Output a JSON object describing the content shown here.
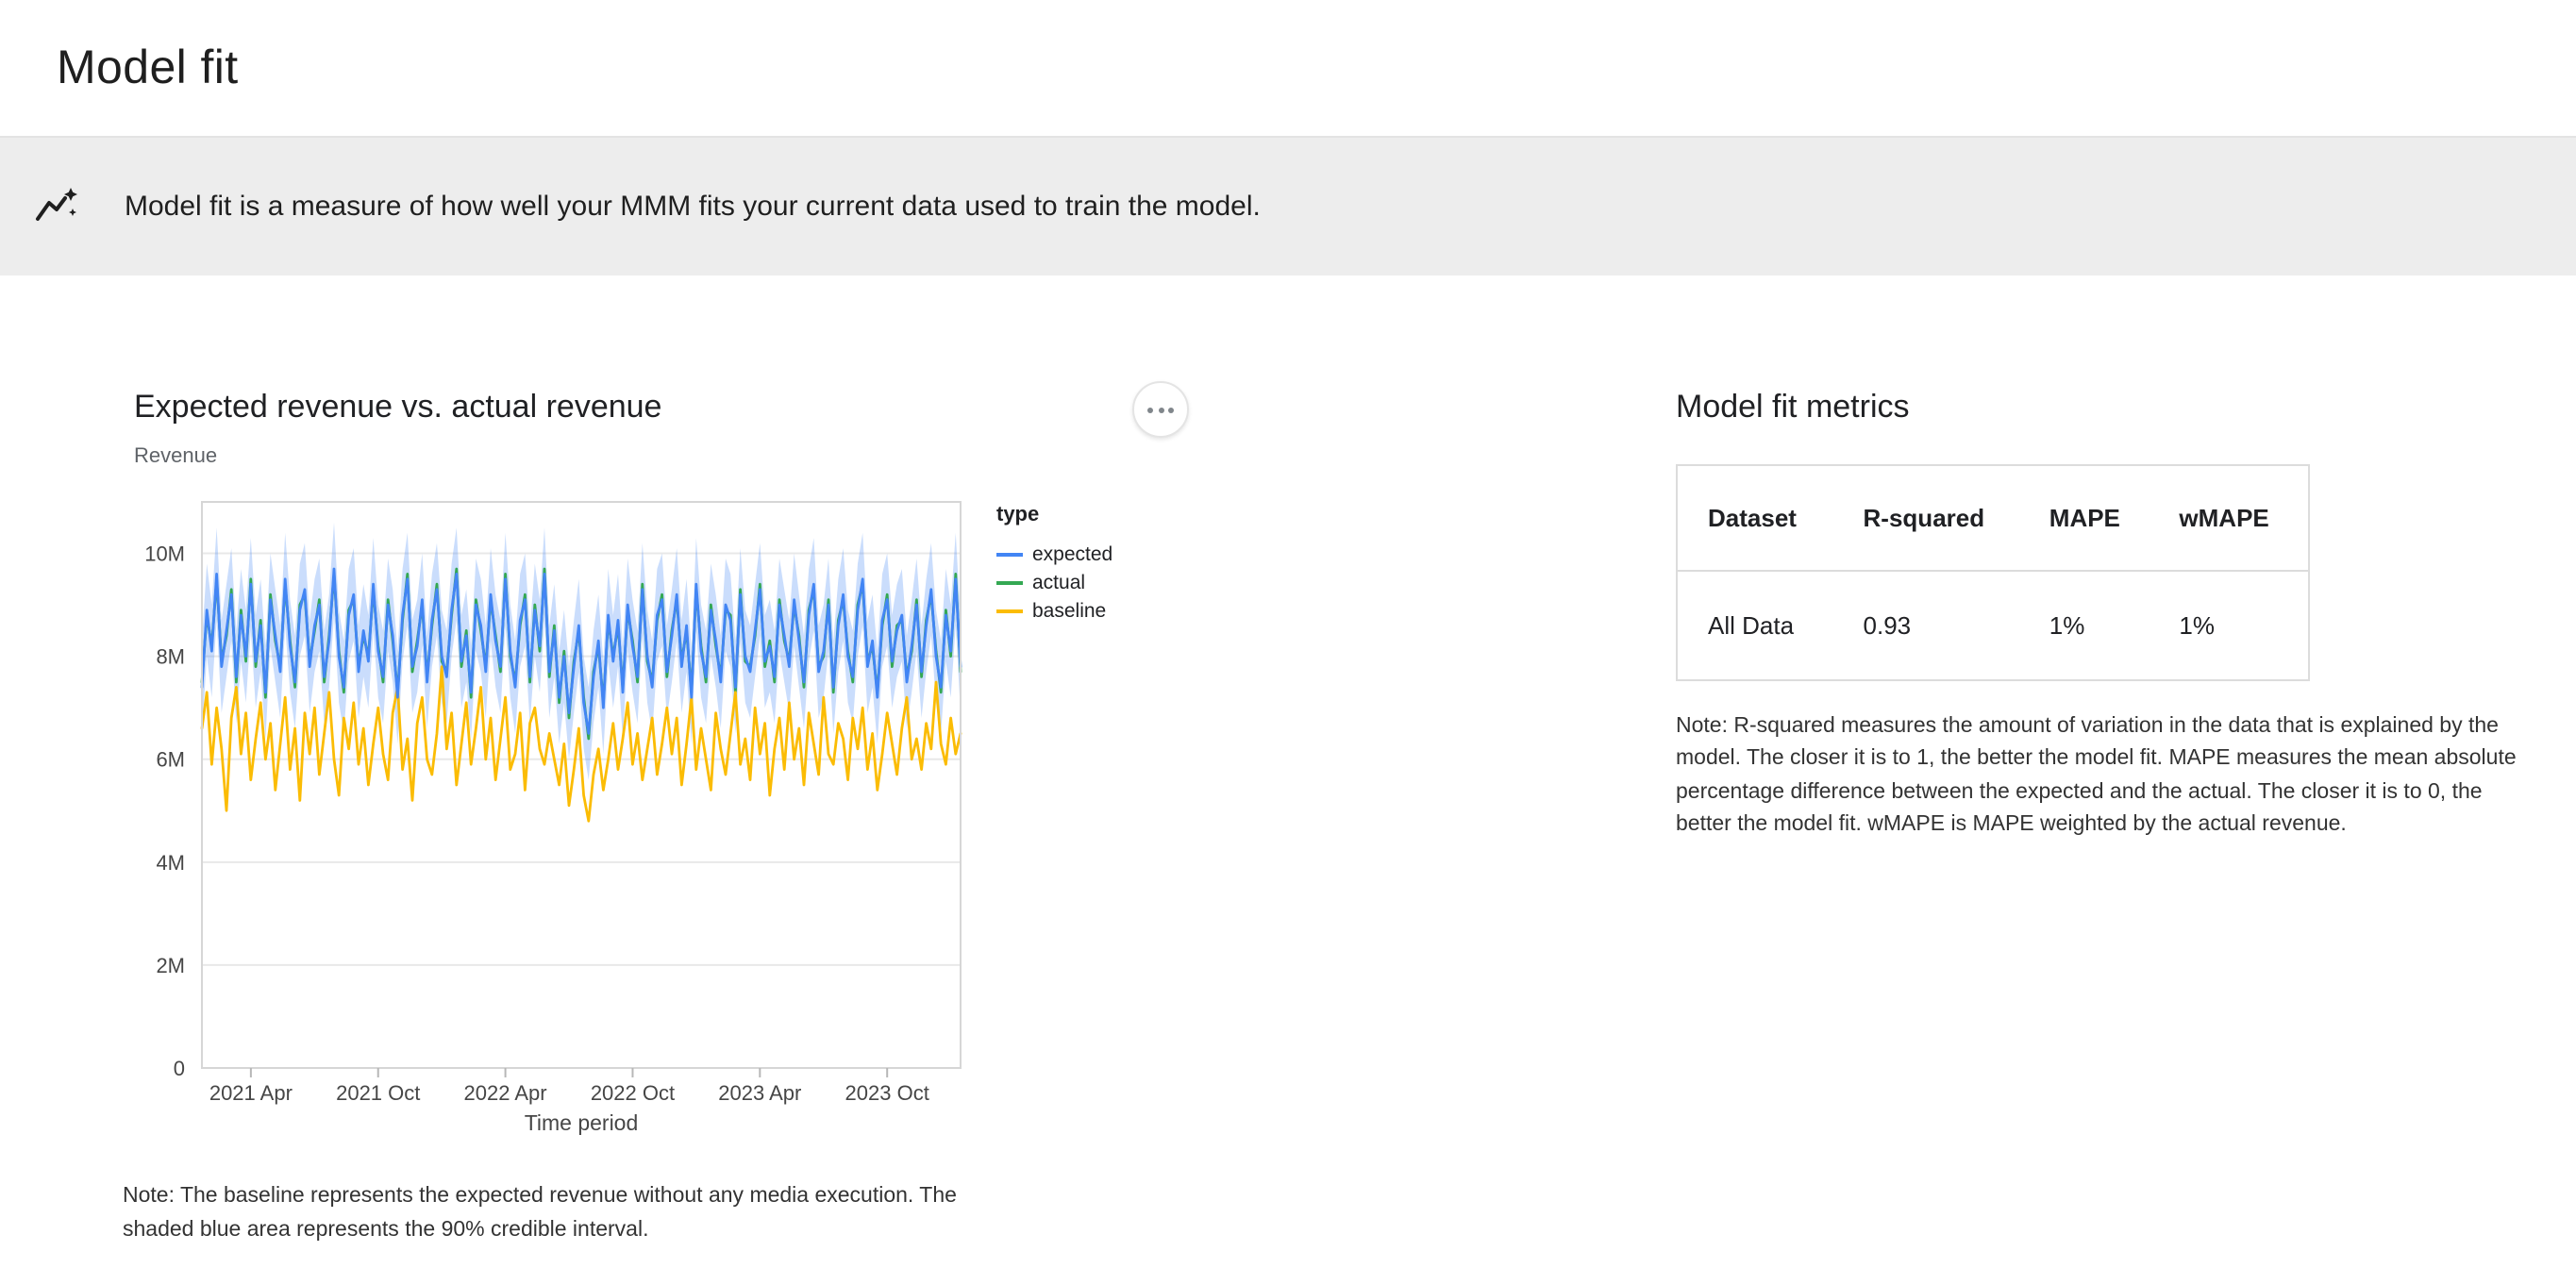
{
  "page": {
    "title": "Model fit",
    "banner_text": "Model fit is a measure of how well your MMM fits your current data used to train the model."
  },
  "chart_section": {
    "title": "Expected revenue vs. actual revenue",
    "y_axis_title": "Revenue",
    "x_axis_title": "Time period",
    "legend_title": "type",
    "legend": [
      {
        "label": "expected",
        "color": "#4285f4"
      },
      {
        "label": "actual",
        "color": "#34a853"
      },
      {
        "label": "baseline",
        "color": "#fbbc04"
      }
    ],
    "note": "Note: The baseline represents the expected revenue without any media execution. The shaded blue area represents the 90% credible interval."
  },
  "metrics_section": {
    "title": "Model fit metrics",
    "table": {
      "headers": [
        "Dataset",
        "R-squared",
        "MAPE",
        "wMAPE"
      ],
      "rows": [
        [
          "All Data",
          "0.93",
          "1%",
          "1%"
        ]
      ]
    },
    "note": "Note: R-squared measures the amount of variation in the data that is explained by the model. The closer it is to 1, the better the model fit. MAPE measures the mean absolute percentage difference between the expected and the actual. The closer it is to 0, the better the model fit. wMAPE is MAPE weighted by the actual revenue."
  },
  "chart_data": {
    "type": "line",
    "title": "Expected revenue vs. actual revenue",
    "xlabel": "Time period",
    "ylabel": "Revenue",
    "frequency": "weekly",
    "x_range": [
      "2021 Jan",
      "2024 Jan"
    ],
    "ylim_millions": [
      0,
      11
    ],
    "y_ticks_millions": [
      0,
      2,
      4,
      6,
      8,
      10
    ],
    "y_tick_labels": [
      "0",
      "2M",
      "4M",
      "6M",
      "8M",
      "10M"
    ],
    "x_tick_positions": [
      10,
      36,
      62,
      88,
      114,
      140
    ],
    "x_tick_labels": [
      "2021 Apr",
      "2021 Oct",
      "2022 Apr",
      "2022 Oct",
      "2023 Apr",
      "2023 Oct"
    ],
    "credible_interval_halfwidth_millions": 0.9,
    "band_color": "#4285f4",
    "band_opacity": 0.28,
    "legend_position": "right",
    "grid": true,
    "series": [
      {
        "name": "expected",
        "color": "#4285f4",
        "values_millions": [
          7.4,
          8.9,
          8.1,
          9.6,
          7.8,
          8.5,
          9.2,
          7.6,
          8.8,
          8.0,
          9.4,
          7.9,
          8.6,
          7.3,
          9.1,
          8.4,
          7.7,
          9.5,
          8.2,
          7.5,
          8.9,
          9.3,
          7.8,
          8.6,
          9.0,
          7.6,
          8.3,
          9.7,
          8.0,
          7.4,
          8.8,
          9.2,
          7.7,
          8.5,
          7.9,
          9.4,
          8.1,
          7.6,
          9.0,
          8.4,
          7.2,
          8.8,
          9.5,
          7.8,
          8.2,
          9.1,
          7.5,
          8.7,
          9.3,
          8.0,
          7.6,
          8.9,
          9.6,
          7.9,
          8.4,
          7.3,
          9.0,
          8.6,
          7.7,
          9.2,
          8.3,
          7.8,
          9.5,
          8.1,
          7.4,
          8.7,
          9.1,
          7.6,
          8.9,
          8.2,
          9.6,
          7.7,
          8.5,
          7.2,
          8.0,
          6.9,
          7.8,
          8.6,
          7.1,
          6.5,
          7.6,
          8.3,
          7.0,
          8.8,
          7.9,
          8.7,
          7.3,
          9.0,
          8.2,
          7.6,
          9.3,
          8.0,
          7.4,
          8.8,
          9.1,
          7.7,
          8.4,
          9.2,
          7.8,
          8.6,
          7.2,
          9.4,
          8.1,
          7.6,
          8.9,
          8.3,
          7.5,
          9.0,
          8.7,
          7.4,
          9.2,
          8.0,
          7.7,
          8.5,
          9.3,
          7.9,
          8.2,
          7.6,
          9.0,
          8.4,
          7.8,
          9.1,
          8.3,
          7.5,
          8.8,
          9.4,
          7.7,
          8.1,
          9.0,
          7.4,
          8.6,
          9.2,
          8.0,
          7.6,
          8.9,
          9.5,
          7.8,
          8.3,
          7.2,
          8.7,
          9.1,
          7.9,
          8.5,
          8.8,
          7.5,
          8.2,
          9.0,
          7.7,
          8.6,
          9.3,
          8.0,
          7.4,
          8.8,
          8.1,
          9.5,
          7.8
        ]
      },
      {
        "name": "actual",
        "color": "#34a853",
        "values_millions": [
          7.5,
          8.8,
          8.2,
          9.5,
          7.9,
          8.4,
          9.3,
          7.5,
          8.9,
          7.9,
          9.5,
          7.8,
          8.7,
          7.2,
          9.2,
          8.3,
          7.8,
          9.4,
          8.3,
          7.4,
          9.0,
          9.2,
          7.9,
          8.5,
          9.1,
          7.5,
          8.4,
          9.6,
          8.1,
          7.3,
          8.9,
          9.1,
          7.8,
          8.4,
          8.0,
          9.3,
          8.2,
          7.5,
          9.1,
          8.3,
          7.3,
          8.7,
          9.6,
          7.7,
          8.3,
          9.0,
          7.6,
          8.6,
          9.4,
          7.9,
          7.7,
          8.8,
          9.7,
          7.8,
          8.5,
          7.2,
          9.1,
          8.5,
          7.8,
          9.1,
          8.4,
          7.7,
          9.6,
          8.0,
          7.5,
          8.6,
          9.2,
          7.5,
          9.0,
          8.1,
          9.7,
          7.6,
          8.6,
          7.1,
          8.1,
          6.8,
          7.9,
          8.5,
          7.2,
          6.4,
          7.7,
          8.2,
          7.1,
          8.7,
          8.0,
          8.6,
          7.4,
          8.9,
          8.3,
          7.5,
          9.4,
          7.9,
          7.5,
          8.7,
          9.2,
          7.6,
          8.5,
          9.1,
          7.9,
          8.5,
          7.3,
          9.3,
          8.2,
          7.5,
          9.0,
          8.2,
          7.6,
          8.9,
          8.8,
          7.3,
          9.3,
          7.9,
          7.8,
          8.4,
          9.4,
          7.8,
          8.3,
          7.5,
          9.1,
          8.3,
          7.9,
          9.0,
          8.4,
          7.4,
          8.9,
          9.3,
          7.8,
          8.0,
          9.1,
          7.3,
          8.7,
          9.1,
          8.1,
          7.5,
          9.0,
          9.4,
          7.9,
          8.2,
          7.3,
          8.6,
          9.2,
          7.8,
          8.6,
          8.7,
          7.6,
          8.1,
          9.1,
          7.6,
          8.7,
          9.2,
          8.1,
          7.3,
          8.9,
          8.0,
          9.6,
          7.7
        ]
      },
      {
        "name": "baseline",
        "color": "#fbbc04",
        "values_millions": [
          6.6,
          7.3,
          5.9,
          7.0,
          6.2,
          5.0,
          6.8,
          7.4,
          6.1,
          6.9,
          5.6,
          6.4,
          7.1,
          6.0,
          6.7,
          5.4,
          6.3,
          7.2,
          5.8,
          6.6,
          5.2,
          6.9,
          6.1,
          7.0,
          5.7,
          6.5,
          7.3,
          6.0,
          5.3,
          6.8,
          6.2,
          7.1,
          5.9,
          6.6,
          5.5,
          6.3,
          7.0,
          6.1,
          5.6,
          6.9,
          7.4,
          5.8,
          6.4,
          5.2,
          6.7,
          7.2,
          6.0,
          5.7,
          6.5,
          7.8,
          6.2,
          6.9,
          5.5,
          6.3,
          7.1,
          5.9,
          6.6,
          7.4,
          6.0,
          6.8,
          5.6,
          6.4,
          7.2,
          5.8,
          6.1,
          6.9,
          5.4,
          6.7,
          7.0,
          6.2,
          5.9,
          6.5,
          6.0,
          5.5,
          6.3,
          5.1,
          5.8,
          6.6,
          5.3,
          4.8,
          5.7,
          6.2,
          5.4,
          6.0,
          6.7,
          5.8,
          6.4,
          7.1,
          5.9,
          6.5,
          5.6,
          6.2,
          6.8,
          5.7,
          6.3,
          7.0,
          6.1,
          6.8,
          5.5,
          6.3,
          7.2,
          5.8,
          6.6,
          6.0,
          5.4,
          6.9,
          6.2,
          5.7,
          6.5,
          7.3,
          5.9,
          6.4,
          5.6,
          7.0,
          6.1,
          6.7,
          5.3,
          6.2,
          6.8,
          5.8,
          7.1,
          6.0,
          6.6,
          5.5,
          6.9,
          6.3,
          5.7,
          7.2,
          6.1,
          5.9,
          6.7,
          6.4,
          5.6,
          6.8,
          6.2,
          7.0,
          5.8,
          6.5,
          5.4,
          6.1,
          6.9,
          6.3,
          5.7,
          6.6,
          7.2,
          6.0,
          6.4,
          5.8,
          6.7,
          6.2,
          7.5,
          6.3,
          5.9,
          6.8,
          6.1,
          6.5
        ]
      }
    ]
  }
}
